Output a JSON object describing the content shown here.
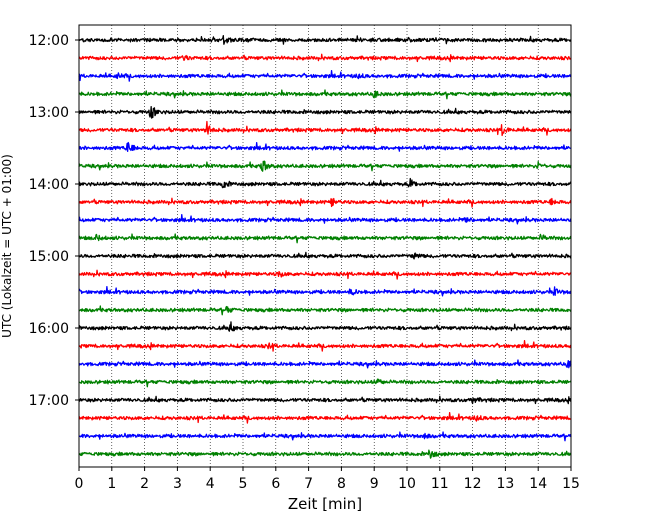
{
  "chart_data": {
    "type": "line",
    "title": "",
    "xlabel": "Zeit  [min]",
    "ylabel": "UTC (Lokalzeit = UTC + 01:00)",
    "xlim": [
      0,
      15
    ],
    "x_ticks": [
      "0",
      "1",
      "2",
      "3",
      "4",
      "5",
      "6",
      "7",
      "8",
      "9",
      "10",
      "11",
      "12",
      "13",
      "14",
      "15"
    ],
    "y_tick_labels": [
      "12:00",
      "13:00",
      "14:00",
      "15:00",
      "16:00",
      "17:00"
    ],
    "grid": "vertical-dotted",
    "legend": "none",
    "trace_colors": [
      "#000000",
      "#ff0000",
      "#0000ff",
      "#008000"
    ],
    "trace_rows": [
      {
        "time": "12:00",
        "events": [
          {
            "t": 4.4,
            "a": 0.5
          }
        ]
      },
      {
        "time": "12:15",
        "events": [
          {
            "t": 3.2,
            "a": 0.35
          }
        ]
      },
      {
        "time": "12:30",
        "events": [
          {
            "t": 1.2,
            "a": 0.3
          },
          {
            "t": 8.5,
            "a": 0.3
          }
        ]
      },
      {
        "time": "12:45",
        "events": [
          {
            "t": 9.0,
            "a": 0.45
          }
        ]
      },
      {
        "time": "13:00",
        "events": [
          {
            "t": 2.2,
            "a": 1.0
          }
        ]
      },
      {
        "time": "13:15",
        "events": [
          {
            "t": 3.9,
            "a": 1.0
          },
          {
            "t": 12.9,
            "a": 0.75
          }
        ]
      },
      {
        "time": "13:30",
        "events": [
          {
            "t": 1.5,
            "a": 1.0
          }
        ]
      },
      {
        "time": "13:45",
        "events": [
          {
            "t": 5.6,
            "a": 1.0
          },
          {
            "t": 14.0,
            "a": 0.4
          }
        ]
      },
      {
        "time": "14:00",
        "events": [
          {
            "t": 4.4,
            "a": 0.55
          },
          {
            "t": 10.1,
            "a": 0.6
          }
        ]
      },
      {
        "time": "14:15",
        "events": [
          {
            "t": 7.7,
            "a": 0.55
          },
          {
            "t": 14.4,
            "a": 0.35
          }
        ]
      },
      {
        "time": "14:30",
        "events": [
          {
            "t": 11.8,
            "a": 0.35
          }
        ]
      },
      {
        "time": "14:45",
        "events": [
          {
            "t": 0.55,
            "a": 0.4
          },
          {
            "t": 14.1,
            "a": 0.4
          }
        ]
      },
      {
        "time": "15:00",
        "events": [
          {
            "t": 10.2,
            "a": 0.45
          }
        ]
      },
      {
        "time": "15:15",
        "events": [
          {
            "t": 6.1,
            "a": 0.4
          }
        ]
      },
      {
        "time": "15:30",
        "events": [
          {
            "t": 8.3,
            "a": 0.45
          },
          {
            "t": 14.5,
            "a": 0.5
          }
        ]
      },
      {
        "time": "15:45",
        "events": [
          {
            "t": 4.5,
            "a": 0.4
          }
        ]
      },
      {
        "time": "16:00",
        "events": [
          {
            "t": 4.6,
            "a": 0.5
          }
        ]
      },
      {
        "time": "16:15",
        "events": [
          {
            "t": 5.8,
            "a": 0.3
          }
        ]
      },
      {
        "time": "16:30",
        "events": [
          {
            "t": 14.9,
            "a": 0.45
          }
        ]
      },
      {
        "time": "16:45",
        "events": [
          {
            "t": 9.1,
            "a": 0.4
          }
        ]
      },
      {
        "time": "17:00",
        "events": [
          {
            "t": 12.0,
            "a": 0.4
          }
        ]
      },
      {
        "time": "17:15",
        "events": [
          {
            "t": 12.1,
            "a": 0.4
          }
        ]
      },
      {
        "time": "17:30",
        "events": [
          {
            "t": 10.5,
            "a": 0.35
          }
        ]
      },
      {
        "time": "17:45",
        "events": [
          {
            "t": 10.7,
            "a": 0.75
          }
        ]
      }
    ]
  }
}
